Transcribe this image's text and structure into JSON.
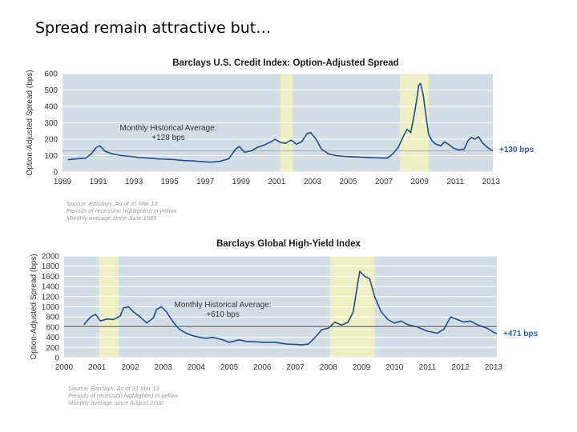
{
  "slide": {
    "title": "Spread remain attractive but…"
  },
  "chart_data": [
    {
      "type": "line",
      "title": "Barclays U.S. Credit Index: Option-Adjusted Spread",
      "ylabel": "Option-Adjusted Spread (bps)",
      "xlim": [
        1989,
        2013.1
      ],
      "ylim": [
        0,
        600
      ],
      "yticks": [
        0,
        100,
        200,
        300,
        400,
        500,
        600
      ],
      "xticks": [
        1989,
        1991,
        1993,
        1995,
        1997,
        1999,
        2001,
        2003,
        2005,
        2007,
        2009,
        2011,
        2013
      ],
      "recessions": [
        [
          2001.2,
          2001.9
        ],
        [
          2007.9,
          2009.5
        ]
      ],
      "average": {
        "value": 128,
        "label_line1": "Monthly Historical Average:",
        "label_line2": "+128 bps"
      },
      "end_label": "+130 bps",
      "notes": [
        "Source: Barclays. As of 31 Mar 13",
        "Periods of recession highlighted in yellow",
        "Monthly average since June 1989"
      ],
      "series": [
        {
          "color": "#1f4e8c",
          "points": [
            [
              1989.3,
              75
            ],
            [
              1989.8,
              80
            ],
            [
              1990.3,
              85
            ],
            [
              1990.6,
              110
            ],
            [
              1990.9,
              150
            ],
            [
              1991.1,
              160
            ],
            [
              1991.4,
              125
            ],
            [
              1991.8,
              110
            ],
            [
              1992.3,
              100
            ],
            [
              1992.8,
              95
            ],
            [
              1993.3,
              88
            ],
            [
              1993.8,
              85
            ],
            [
              1994.3,
              80
            ],
            [
              1994.8,
              78
            ],
            [
              1995.3,
              75
            ],
            [
              1995.8,
              70
            ],
            [
              1996.3,
              68
            ],
            [
              1996.8,
              63
            ],
            [
              1997.3,
              60
            ],
            [
              1997.8,
              65
            ],
            [
              1998.3,
              80
            ],
            [
              1998.7,
              140
            ],
            [
              1998.9,
              155
            ],
            [
              1999.2,
              120
            ],
            [
              1999.6,
              130
            ],
            [
              1999.9,
              150
            ],
            [
              2000.3,
              165
            ],
            [
              2000.7,
              185
            ],
            [
              2000.9,
              200
            ],
            [
              2001.2,
              180
            ],
            [
              2001.5,
              175
            ],
            [
              2001.8,
              195
            ],
            [
              2002.1,
              170
            ],
            [
              2002.4,
              185
            ],
            [
              2002.7,
              235
            ],
            [
              2002.9,
              240
            ],
            [
              2003.2,
              200
            ],
            [
              2003.5,
              140
            ],
            [
              2003.9,
              110
            ],
            [
              2004.3,
              100
            ],
            [
              2004.8,
              95
            ],
            [
              2005.3,
              92
            ],
            [
              2005.8,
              90
            ],
            [
              2006.3,
              88
            ],
            [
              2006.8,
              86
            ],
            [
              2007.2,
              85
            ],
            [
              2007.5,
              110
            ],
            [
              2007.8,
              150
            ],
            [
              2008.1,
              220
            ],
            [
              2008.3,
              260
            ],
            [
              2008.5,
              240
            ],
            [
              2008.7,
              350
            ],
            [
              2008.85,
              450
            ],
            [
              2008.95,
              530
            ],
            [
              2009.05,
              540
            ],
            [
              2009.2,
              470
            ],
            [
              2009.35,
              350
            ],
            [
              2009.5,
              230
            ],
            [
              2009.7,
              190
            ],
            [
              2009.9,
              170
            ],
            [
              2010.2,
              160
            ],
            [
              2010.4,
              185
            ],
            [
              2010.6,
              170
            ],
            [
              2010.9,
              145
            ],
            [
              2011.2,
              135
            ],
            [
              2011.5,
              140
            ],
            [
              2011.7,
              190
            ],
            [
              2011.9,
              210
            ],
            [
              2012.1,
              200
            ],
            [
              2012.3,
              215
            ],
            [
              2012.5,
              180
            ],
            [
              2012.8,
              150
            ],
            [
              2013.0,
              135
            ],
            [
              2013.1,
              130
            ]
          ]
        }
      ]
    },
    {
      "type": "line",
      "title": "Barclays Global High-Yield Index",
      "ylabel": "Option-Adjusted Spread (bps)",
      "xlim": [
        2000,
        2013.1
      ],
      "ylim": [
        0,
        2000
      ],
      "yticks": [
        0,
        200,
        400,
        600,
        800,
        1000,
        1200,
        1400,
        1600,
        1800,
        2000
      ],
      "xticks": [
        2000,
        2001,
        2002,
        2003,
        2004,
        2005,
        2006,
        2007,
        2008,
        2009,
        2010,
        2011,
        2012,
        2013
      ],
      "recessions": [
        [
          2001.05,
          2001.65
        ],
        [
          2008.05,
          2009.4
        ]
      ],
      "average": {
        "value": 610,
        "label_line1": "Monthly Historical Average:",
        "label_line2": "+610 bps"
      },
      "end_label": "+471 bps",
      "notes": [
        "Source: Barclays. As of 31 Mar 13",
        "Periods of recession highlighted in yellow",
        "Monthly average since August 2000"
      ],
      "series": [
        {
          "color": "#1f4e8c",
          "points": [
            [
              2000.6,
              650
            ],
            [
              2000.8,
              800
            ],
            [
              2000.95,
              850
            ],
            [
              2001.1,
              720
            ],
            [
              2001.3,
              760
            ],
            [
              2001.5,
              750
            ],
            [
              2001.7,
              820
            ],
            [
              2001.8,
              980
            ],
            [
              2001.95,
              1000
            ],
            [
              2002.1,
              900
            ],
            [
              2002.3,
              800
            ],
            [
              2002.5,
              680
            ],
            [
              2002.7,
              780
            ],
            [
              2002.8,
              950
            ],
            [
              2002.95,
              1000
            ],
            [
              2003.1,
              900
            ],
            [
              2003.3,
              700
            ],
            [
              2003.5,
              550
            ],
            [
              2003.7,
              480
            ],
            [
              2003.9,
              430
            ],
            [
              2004.1,
              400
            ],
            [
              2004.3,
              380
            ],
            [
              2004.5,
              400
            ],
            [
              2004.8,
              350
            ],
            [
              2005.0,
              300
            ],
            [
              2005.3,
              350
            ],
            [
              2005.5,
              320
            ],
            [
              2005.8,
              310
            ],
            [
              2006.1,
              300
            ],
            [
              2006.4,
              300
            ],
            [
              2006.7,
              270
            ],
            [
              2007.0,
              260
            ],
            [
              2007.2,
              250
            ],
            [
              2007.4,
              270
            ],
            [
              2007.6,
              400
            ],
            [
              2007.8,
              550
            ],
            [
              2008.0,
              580
            ],
            [
              2008.2,
              700
            ],
            [
              2008.4,
              640
            ],
            [
              2008.6,
              700
            ],
            [
              2008.75,
              900
            ],
            [
              2008.85,
              1300
            ],
            [
              2008.95,
              1700
            ],
            [
              2009.1,
              1600
            ],
            [
              2009.25,
              1550
            ],
            [
              2009.4,
              1200
            ],
            [
              2009.6,
              900
            ],
            [
              2009.8,
              750
            ],
            [
              2010.0,
              680
            ],
            [
              2010.2,
              720
            ],
            [
              2010.4,
              650
            ],
            [
              2010.7,
              600
            ],
            [
              2011.0,
              520
            ],
            [
              2011.3,
              480
            ],
            [
              2011.5,
              560
            ],
            [
              2011.7,
              800
            ],
            [
              2011.9,
              750
            ],
            [
              2012.1,
              700
            ],
            [
              2012.3,
              720
            ],
            [
              2012.5,
              650
            ],
            [
              2012.8,
              580
            ],
            [
              2013.0,
              500
            ],
            [
              2013.1,
              471
            ]
          ]
        }
      ]
    }
  ]
}
